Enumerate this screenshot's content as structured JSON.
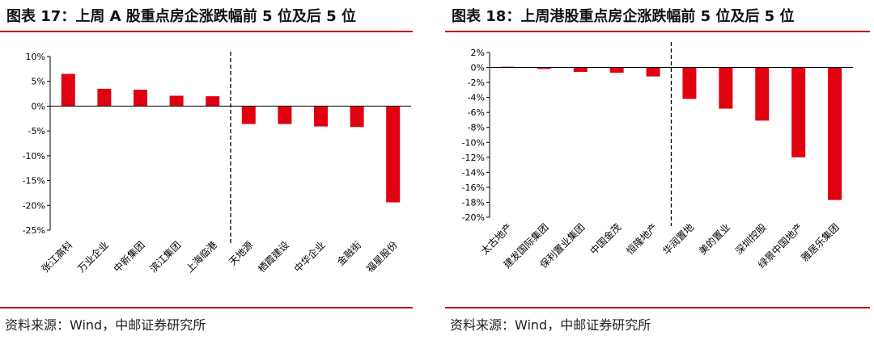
{
  "left": {
    "title": "图表 17：上周 A 股重点房企涨跌幅前 5 位及后 5 位",
    "source": "资料来源：Wind，中邮证券研究所",
    "chart_data": {
      "type": "bar",
      "title": "图表 17：上周 A 股重点房企涨跌幅前 5 位及后 5 位",
      "categories": [
        "张江高科",
        "万业企业",
        "中新集团",
        "滨江集团",
        "上海临港",
        "天地源",
        "栖霞建设",
        "中华企业",
        "金融街",
        "福星股份"
      ],
      "series": [
        {
          "values": [
            6.5,
            3.5,
            3.3,
            2.1,
            2.0,
            -3.6,
            -3.6,
            -4.1,
            -4.2,
            -19.4
          ]
        }
      ],
      "ylim": [
        -25,
        10
      ],
      "yticks": [
        10,
        5,
        0,
        -5,
        -10,
        -15,
        -20,
        -25
      ],
      "ytick_labels": [
        "10%",
        "5%",
        "0%",
        "-5%",
        "-10%",
        "-15%",
        "-20%",
        "-25%"
      ],
      "separator_after_index": 4,
      "bar_color": "#e00010",
      "grid": false
    }
  },
  "right": {
    "title": "图表 18：上周港股重点房企涨跌幅前 5 位及后 5 位",
    "source": "资料来源：Wind，中邮证券研究所",
    "chart_data": {
      "type": "bar",
      "title": "图表 18：上周港股重点房企涨跌幅前 5 位及后 5 位",
      "categories": [
        "太古地产",
        "建发国际集团",
        "保利置业集团",
        "中国金茂",
        "恒隆地产",
        "华润置地",
        "美的置业",
        "深圳控股",
        "绿景中国地产",
        "雅居乐集团"
      ],
      "series": [
        {
          "values": [
            0.1,
            -0.2,
            -0.6,
            -0.7,
            -1.2,
            -4.2,
            -5.5,
            -7.1,
            -12.0,
            -17.7
          ]
        }
      ],
      "ylim": [
        -20,
        2
      ],
      "yticks": [
        2,
        0,
        -2,
        -4,
        -6,
        -8,
        -10,
        -12,
        -14,
        -16,
        -18,
        -20
      ],
      "ytick_labels": [
        "2%",
        "0%",
        "-2%",
        "-4%",
        "-6%",
        "-8%",
        "-10%",
        "-12%",
        "-14%",
        "-16%",
        "-18%",
        "-20%"
      ],
      "separator_after_index": 4,
      "bar_color": "#e00010",
      "grid": false
    }
  }
}
